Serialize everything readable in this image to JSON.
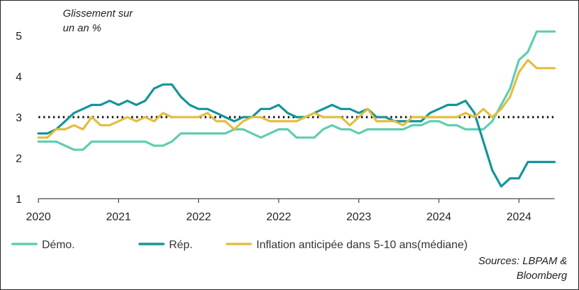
{
  "chart_data": {
    "type": "line",
    "unit_label_line1": "Glissement sur",
    "unit_label_line2": "un an %",
    "ylim": [
      1,
      5.4
    ],
    "y_ticks": [
      "1",
      "2",
      "3",
      "4",
      "5"
    ],
    "x_tick_labels": [
      "2020",
      "2021",
      "2022",
      "2022",
      "2023",
      "2024",
      "2024"
    ],
    "reference_line": 3,
    "months": 59,
    "series": [
      {
        "name": "Démo.",
        "color": "#5fcdb0",
        "values": [
          2.4,
          2.4,
          2.4,
          2.3,
          2.2,
          2.2,
          2.4,
          2.4,
          2.4,
          2.4,
          2.4,
          2.4,
          2.4,
          2.3,
          2.3,
          2.4,
          2.6,
          2.6,
          2.6,
          2.6,
          2.6,
          2.6,
          2.7,
          2.7,
          2.6,
          2.5,
          2.6,
          2.7,
          2.7,
          2.5,
          2.5,
          2.5,
          2.7,
          2.8,
          2.7,
          2.7,
          2.6,
          2.7,
          2.7,
          2.7,
          2.7,
          2.7,
          2.8,
          2.8,
          2.9,
          2.9,
          2.8,
          2.8,
          2.7,
          2.7,
          2.7,
          2.9,
          3.3,
          3.7,
          4.4,
          4.6,
          5.1,
          5.1,
          5.1
        ]
      },
      {
        "name": "Rép.",
        "color": "#14949b",
        "values": [
          2.6,
          2.6,
          2.7,
          2.9,
          3.1,
          3.2,
          3.3,
          3.3,
          3.4,
          3.3,
          3.4,
          3.3,
          3.4,
          3.7,
          3.8,
          3.8,
          3.5,
          3.3,
          3.2,
          3.2,
          3.1,
          3.0,
          2.9,
          3.0,
          3.0,
          3.2,
          3.2,
          3.3,
          3.1,
          3.0,
          3.0,
          3.1,
          3.2,
          3.3,
          3.2,
          3.2,
          3.1,
          3.2,
          3.0,
          3.0,
          2.9,
          2.9,
          2.9,
          2.9,
          3.1,
          3.2,
          3.3,
          3.3,
          3.4,
          3.1,
          2.4,
          1.7,
          1.3,
          1.5,
          1.5,
          1.9,
          1.9,
          1.9,
          1.9
        ]
      },
      {
        "name": "Inflation anticipée dans 5-10 ans(médiane)",
        "color": "#e3bd3f",
        "values": [
          2.5,
          2.5,
          2.7,
          2.7,
          2.8,
          2.7,
          3.0,
          2.8,
          2.8,
          2.9,
          3.0,
          2.9,
          3.0,
          2.9,
          3.1,
          3.0,
          3.0,
          3.0,
          3.0,
          3.1,
          2.9,
          2.9,
          2.7,
          2.9,
          3.0,
          3.0,
          2.9,
          2.9,
          2.9,
          2.9,
          3.0,
          3.1,
          3.0,
          3.0,
          3.0,
          2.8,
          3.0,
          3.2,
          2.9,
          2.9,
          2.9,
          2.8,
          3.0,
          3.0,
          3.0,
          3.0,
          3.0,
          3.0,
          3.1,
          3.0,
          3.2,
          3.0,
          3.2,
          3.5,
          4.1,
          4.4,
          4.2,
          4.2,
          4.2
        ]
      }
    ]
  },
  "sources_line1": "Sources: LBPAM &",
  "sources_line2": "Bloomberg"
}
